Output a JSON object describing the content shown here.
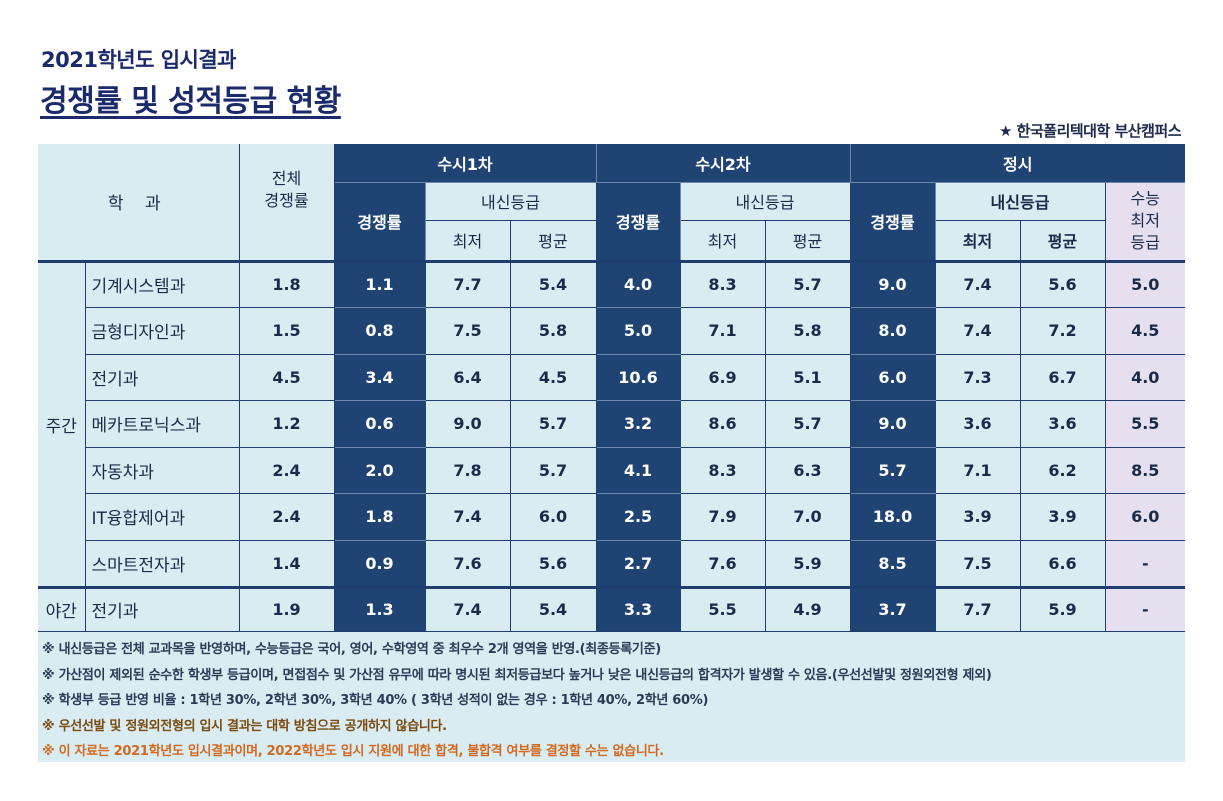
{
  "header": {
    "subtitle": "2021학년도 입시결과",
    "title": "경쟁률 및 성적등급 현황",
    "campus": "★ 한국폴리텍대학 부산캠퍼스"
  },
  "table_head": {
    "dept": "학  과",
    "total": "전체\n경쟁률",
    "susi1": "수시1차",
    "susi2": "수시2차",
    "jeongsi": "정시",
    "rate": "경쟁률",
    "naesin": "내신등급",
    "min": "최저",
    "avg": "평균",
    "suneung": "수능\n최저\n등급"
  },
  "groups": {
    "day": "주간",
    "night": "야간"
  },
  "rows": [
    {
      "dept": "기계시스템과",
      "total": "1.8",
      "s1_rate": "1.1",
      "s1_min": "7.7",
      "s1_avg": "5.4",
      "s2_rate": "4.0",
      "s2_min": "8.3",
      "s2_avg": "5.7",
      "j_rate": "9.0",
      "j_min": "7.4",
      "j_avg": "5.6",
      "j_sn": "5.0"
    },
    {
      "dept": "금형디자인과",
      "total": "1.5",
      "s1_rate": "0.8",
      "s1_min": "7.5",
      "s1_avg": "5.8",
      "s2_rate": "5.0",
      "s2_min": "7.1",
      "s2_avg": "5.8",
      "j_rate": "8.0",
      "j_min": "7.4",
      "j_avg": "7.2",
      "j_sn": "4.5"
    },
    {
      "dept": "전기과",
      "total": "4.5",
      "s1_rate": "3.4",
      "s1_min": "6.4",
      "s1_avg": "4.5",
      "s2_rate": "10.6",
      "s2_min": "6.9",
      "s2_avg": "5.1",
      "j_rate": "6.0",
      "j_min": "7.3",
      "j_avg": "6.7",
      "j_sn": "4.0"
    },
    {
      "dept": "메카트로닉스과",
      "total": "1.2",
      "s1_rate": "0.6",
      "s1_min": "9.0",
      "s1_avg": "5.7",
      "s2_rate": "3.2",
      "s2_min": "8.6",
      "s2_avg": "5.7",
      "j_rate": "9.0",
      "j_min": "3.6",
      "j_avg": "3.6",
      "j_sn": "5.5"
    },
    {
      "dept": "자동차과",
      "total": "2.4",
      "s1_rate": "2.0",
      "s1_min": "7.8",
      "s1_avg": "5.7",
      "s2_rate": "4.1",
      "s2_min": "8.3",
      "s2_avg": "6.3",
      "j_rate": "5.7",
      "j_min": "7.1",
      "j_avg": "6.2",
      "j_sn": "8.5"
    },
    {
      "dept": "IT융합제어과",
      "total": "2.4",
      "s1_rate": "1.8",
      "s1_min": "7.4",
      "s1_avg": "6.0",
      "s2_rate": "2.5",
      "s2_min": "7.9",
      "s2_avg": "7.0",
      "j_rate": "18.0",
      "j_min": "3.9",
      "j_avg": "3.9",
      "j_sn": "6.0"
    },
    {
      "dept": "스마트전자과",
      "total": "1.4",
      "s1_rate": "0.9",
      "s1_min": "7.6",
      "s1_avg": "5.6",
      "s2_rate": "2.7",
      "s2_min": "7.6",
      "s2_avg": "5.9",
      "j_rate": "8.5",
      "j_min": "7.5",
      "j_avg": "6.6",
      "j_sn": "-"
    },
    {
      "dept": "전기과",
      "total": "1.9",
      "s1_rate": "1.3",
      "s1_min": "7.4",
      "s1_avg": "5.4",
      "s2_rate": "3.3",
      "s2_min": "5.5",
      "s2_avg": "4.9",
      "j_rate": "3.7",
      "j_min": "7.7",
      "j_avg": "5.9",
      "j_sn": "-"
    }
  ],
  "notes": [
    "※ 내신등급은 전체 교과목을 반영하며, 수능등급은 국어, 영어, 수학영역 중 최우수 2개 영역을 반영.(최종등록기준)",
    "※ 가산점이 제외된 순수한 학생부 등급이며, 면접점수 및 가산점 유무에 따라 명시된 최저등급보다 높거나 낮은 내신등급의 합격자가 발생할 수 있음.(우선선발및 정원외전형 제외)",
    "※ 학생부 등급 반영 비율 : 1학년 30%, 2학년 30%, 3학년 40% ( 3학년 성적이 없는 경우 : 1학년 40%, 2학년 60%)",
    "※ 우선선발 및 정원외전형의 입시 결과는 대학 방침으로 공개하지 않습니다.",
    "※ 이 자료는 2021학년도 입시결과이며, 2022학년도 입시 지원에 대한 합격, 불합격 여부를 결정할 수는 없습니다."
  ],
  "colors": {
    "navy": "#1f4372",
    "light_blue": "#d9ecf2",
    "lavender": "#e5dff0",
    "title": "#1b2a6b",
    "orange": "#d2691e"
  }
}
